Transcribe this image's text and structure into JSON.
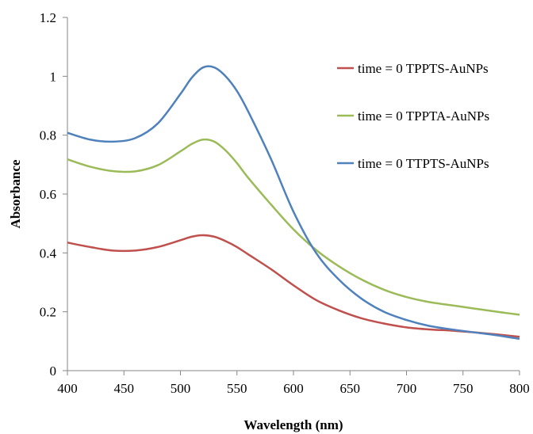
{
  "chart_data": {
    "type": "line",
    "xlabel": "Wavelength (nm)",
    "ylabel": "Absorbance",
    "xlim": [
      400,
      800
    ],
    "ylim": [
      0,
      1.2
    ],
    "x_ticks": [
      400,
      450,
      500,
      550,
      600,
      650,
      700,
      750,
      800
    ],
    "y_ticks": [
      0,
      0.2,
      0.4,
      0.6,
      0.8,
      1,
      1.2
    ],
    "y_tick_labels": [
      "0",
      "0.2",
      "0.4",
      "0.6",
      "0.8",
      "1",
      "1.2"
    ],
    "grid": false,
    "legend_position": "right",
    "series": [
      {
        "name": "time = 0 TPPTS-AuNPs",
        "color": "#c0504d",
        "x": [
          400,
          420,
          440,
          460,
          480,
          500,
          510,
          520,
          530,
          540,
          550,
          560,
          580,
          600,
          620,
          640,
          660,
          680,
          700,
          720,
          740,
          760,
          780,
          800
        ],
        "y": [
          0.435,
          0.42,
          0.408,
          0.408,
          0.42,
          0.443,
          0.455,
          0.46,
          0.455,
          0.44,
          0.42,
          0.395,
          0.345,
          0.29,
          0.24,
          0.205,
          0.178,
          0.16,
          0.147,
          0.14,
          0.136,
          0.13,
          0.123,
          0.115
        ]
      },
      {
        "name": "time = 0 TPPTA-AuNPs",
        "color": "#9bbb59",
        "x": [
          400,
          420,
          440,
          460,
          480,
          500,
          510,
          520,
          530,
          540,
          550,
          560,
          580,
          600,
          620,
          640,
          660,
          680,
          700,
          720,
          740,
          760,
          780,
          800
        ],
        "y": [
          0.718,
          0.693,
          0.678,
          0.677,
          0.698,
          0.745,
          0.77,
          0.785,
          0.778,
          0.748,
          0.705,
          0.655,
          0.565,
          0.48,
          0.41,
          0.355,
          0.31,
          0.275,
          0.25,
          0.233,
          0.222,
          0.211,
          0.2,
          0.19
        ]
      },
      {
        "name": "time = 0 TTPTS-AuNPs",
        "color": "#4f81bd",
        "x": [
          400,
          420,
          440,
          460,
          480,
          500,
          510,
          520,
          530,
          540,
          550,
          560,
          580,
          600,
          620,
          640,
          660,
          680,
          700,
          720,
          740,
          760,
          780,
          800
        ],
        "y": [
          0.808,
          0.785,
          0.778,
          0.79,
          0.84,
          0.94,
          0.995,
          1.03,
          1.03,
          1.0,
          0.95,
          0.88,
          0.72,
          0.54,
          0.4,
          0.31,
          0.245,
          0.2,
          0.172,
          0.152,
          0.14,
          0.13,
          0.12,
          0.108
        ]
      }
    ]
  }
}
